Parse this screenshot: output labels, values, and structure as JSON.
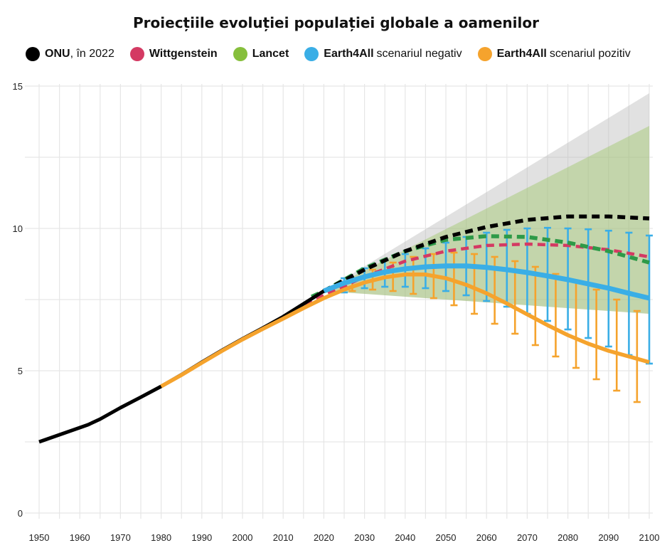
{
  "chart_data": {
    "type": "line",
    "title": "Proiecțiile evoluției populației globale a oamenilor",
    "xlabel": "",
    "ylabel": "",
    "xlim": [
      1950,
      2100
    ],
    "ylim": [
      0,
      15
    ],
    "x_ticks": [
      1950,
      1960,
      1970,
      1980,
      1990,
      2000,
      2010,
      2020,
      2030,
      2040,
      2050,
      2060,
      2070,
      2080,
      2090,
      2100
    ],
    "y_ticks": [
      0,
      5,
      10,
      15
    ],
    "grid": true,
    "legend_position": "top",
    "legend": [
      {
        "strong": "ONU",
        "rest": ", în 2022",
        "color": "#000000"
      },
      {
        "strong": "Wittgenstein",
        "rest": "",
        "color": "#d43a63"
      },
      {
        "strong": "Lancet",
        "rest": "",
        "color": "#86bf3c"
      },
      {
        "strong": "Earth4All",
        "rest": "scenariul negativ",
        "color": "#3aaee6"
      },
      {
        "strong": "Earth4All",
        "rest": "scenariul pozitiv",
        "color": "#f5a32d"
      }
    ],
    "series": [
      {
        "id": "un-historical",
        "color": "#000000",
        "style": "solid",
        "x": [
          1950,
          1955,
          1960,
          1962,
          1965,
          1970,
          1975,
          1980,
          1985,
          1990,
          1995,
          2000,
          2005,
          2010,
          2015,
          2020
        ],
        "y": [
          2.5,
          2.75,
          3.0,
          3.1,
          3.3,
          3.7,
          4.07,
          4.45,
          4.86,
          5.3,
          5.72,
          6.12,
          6.5,
          6.9,
          7.35,
          7.8
        ]
      },
      {
        "id": "un-projection",
        "color": "#000000",
        "style": "dashed",
        "x": [
          2020,
          2030,
          2040,
          2050,
          2060,
          2070,
          2080,
          2090,
          2100
        ],
        "y": [
          7.8,
          8.55,
          9.2,
          9.7,
          10.05,
          10.3,
          10.42,
          10.42,
          10.35
        ],
        "band": {
          "color": "#bdbdbd",
          "x": [
            2020,
            2100
          ],
          "low": [
            7.8,
            7.0
          ],
          "high": [
            7.8,
            14.75
          ]
        }
      },
      {
        "id": "wittgenstein",
        "color": "#d43a63",
        "style": "dashed",
        "x": [
          2010,
          2020,
          2030,
          2040,
          2050,
          2060,
          2070,
          2080,
          2090,
          2100
        ],
        "y": [
          6.85,
          7.65,
          8.3,
          8.85,
          9.2,
          9.4,
          9.45,
          9.4,
          9.25,
          9.0
        ]
      },
      {
        "id": "lancet",
        "color": "#86bf3c",
        "style": "dashed",
        "x": [
          2017,
          2020,
          2030,
          2040,
          2050,
          2060,
          2070,
          2080,
          2090,
          2100
        ],
        "y": [
          7.6,
          7.8,
          8.6,
          9.2,
          9.6,
          9.73,
          9.7,
          9.5,
          9.2,
          8.8
        ],
        "band": {
          "color": "#86bf3c",
          "x": [
            2020,
            2100
          ],
          "low": [
            7.8,
            7.0
          ],
          "high": [
            7.8,
            13.6
          ]
        }
      },
      {
        "id": "earth4all-negative",
        "color": "#3aaee6",
        "style": "solid",
        "x": [
          2020,
          2025,
          2030,
          2035,
          2040,
          2045,
          2050,
          2055,
          2060,
          2065,
          2070,
          2075,
          2080,
          2085,
          2090,
          2095,
          2100
        ],
        "y": [
          7.8,
          8.08,
          8.3,
          8.47,
          8.58,
          8.65,
          8.68,
          8.68,
          8.63,
          8.55,
          8.45,
          8.33,
          8.2,
          8.05,
          7.9,
          7.72,
          7.55
        ],
        "error_bars": [
          {
            "x": 2025,
            "low": 7.75,
            "high": 8.25
          },
          {
            "x": 2030,
            "low": 7.9,
            "high": 8.6
          },
          {
            "x": 2035,
            "low": 7.95,
            "high": 8.9
          },
          {
            "x": 2040,
            "low": 7.95,
            "high": 9.1
          },
          {
            "x": 2045,
            "low": 7.9,
            "high": 9.3
          },
          {
            "x": 2050,
            "low": 7.8,
            "high": 9.5
          },
          {
            "x": 2055,
            "low": 7.65,
            "high": 9.7
          },
          {
            "x": 2060,
            "low": 7.45,
            "high": 9.85
          },
          {
            "x": 2065,
            "low": 7.25,
            "high": 9.95
          },
          {
            "x": 2070,
            "low": 7.0,
            "high": 10.0
          },
          {
            "x": 2075,
            "low": 6.75,
            "high": 10.02
          },
          {
            "x": 2080,
            "low": 6.45,
            "high": 10.0
          },
          {
            "x": 2085,
            "low": 6.15,
            "high": 9.97
          },
          {
            "x": 2090,
            "low": 5.85,
            "high": 9.92
          },
          {
            "x": 2095,
            "low": 5.55,
            "high": 9.85
          },
          {
            "x": 2100,
            "low": 5.25,
            "high": 9.75
          }
        ]
      },
      {
        "id": "earth4all-positive",
        "color": "#f5a32d",
        "style": "solid",
        "x": [
          1980,
          1985,
          1990,
          1995,
          2000,
          2005,
          2010,
          2015,
          2020,
          2025,
          2030,
          2035,
          2040,
          2045,
          2050,
          2055,
          2060,
          2065,
          2070,
          2075,
          2080,
          2085,
          2090,
          2095,
          2100
        ],
        "y": [
          4.45,
          4.85,
          5.28,
          5.7,
          6.1,
          6.47,
          6.83,
          7.2,
          7.55,
          7.85,
          8.1,
          8.28,
          8.38,
          8.38,
          8.25,
          8.02,
          7.72,
          7.36,
          6.98,
          6.6,
          6.25,
          5.95,
          5.7,
          5.5,
          5.3
        ],
        "error_bars": [
          {
            "x": 2027,
            "low": 7.8,
            "high": 8.2
          },
          {
            "x": 2032,
            "low": 7.85,
            "high": 8.55
          },
          {
            "x": 2037,
            "low": 7.8,
            "high": 8.8
          },
          {
            "x": 2042,
            "low": 7.7,
            "high": 9.0
          },
          {
            "x": 2047,
            "low": 7.55,
            "high": 9.1
          },
          {
            "x": 2052,
            "low": 7.3,
            "high": 9.15
          },
          {
            "x": 2057,
            "low": 7.0,
            "high": 9.1
          },
          {
            "x": 2062,
            "low": 6.65,
            "high": 9.0
          },
          {
            "x": 2067,
            "low": 6.3,
            "high": 8.85
          },
          {
            "x": 2072,
            "low": 5.9,
            "high": 8.65
          },
          {
            "x": 2077,
            "low": 5.5,
            "high": 8.4
          },
          {
            "x": 2082,
            "low": 5.1,
            "high": 8.15
          },
          {
            "x": 2087,
            "low": 4.7,
            "high": 7.85
          },
          {
            "x": 2092,
            "low": 4.3,
            "high": 7.5
          },
          {
            "x": 2097,
            "low": 3.9,
            "high": 7.1
          }
        ]
      }
    ]
  }
}
